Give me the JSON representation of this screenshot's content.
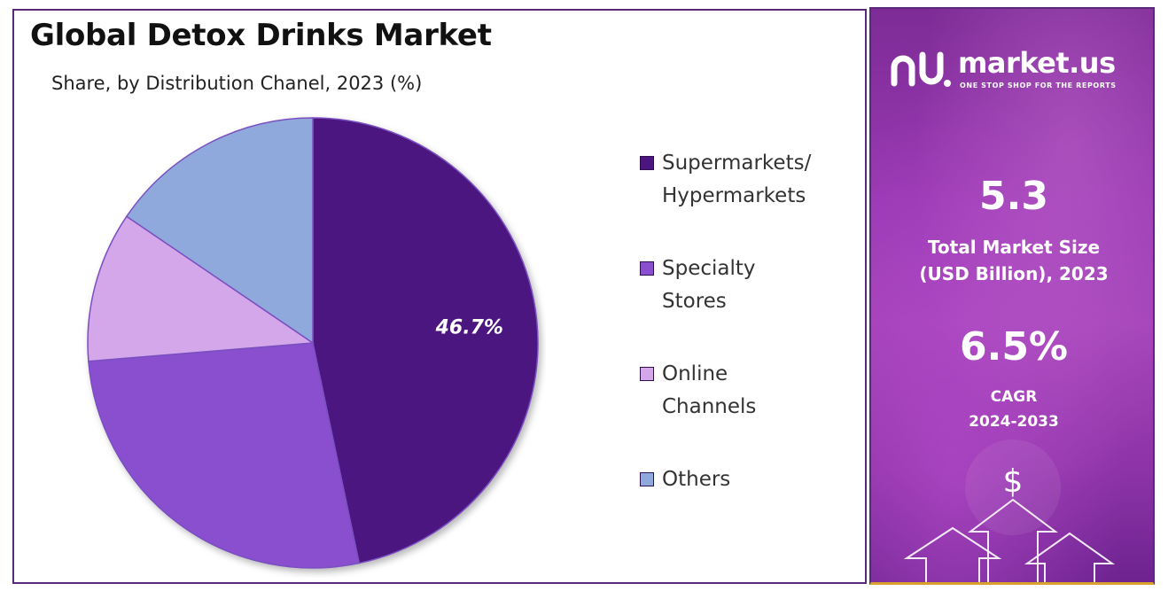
{
  "chart_data": {
    "type": "pie",
    "title": "Global Detox Drinks Market",
    "subtitle": "Share, by Distribution Chanel, 2023 (%)",
    "categories": [
      "Supermarkets/ Hypermarkets",
      "Specialty Stores",
      "Online Channels",
      "Others"
    ],
    "values": [
      46.7,
      27.0,
      10.8,
      15.5
    ],
    "data_labels": [
      "46.7%",
      "",
      "",
      ""
    ],
    "colors": [
      "#4c1580",
      "#8a4fcf",
      "#d4a6ea",
      "#8fa9dc"
    ],
    "start_angle": "12 o'clock",
    "direction": "clockwise",
    "legend_position": "right"
  },
  "legend": {
    "items": [
      {
        "line1": "Supermarkets/",
        "line2": "Hypermarkets",
        "color": "#4c1580"
      },
      {
        "line1": "Specialty",
        "line2": "Stores",
        "color": "#8a4fcf"
      },
      {
        "line1": "Online",
        "line2": "Channels",
        "color": "#d4a6ea"
      },
      {
        "line1": "Others",
        "line2": "",
        "color": "#8fa9dc"
      }
    ]
  },
  "sidebar": {
    "brand_name": "market.us",
    "brand_tagline": "ONE STOP SHOP FOR THE REPORTS",
    "market_size_value": "5.3",
    "market_size_label_1": "Total Market Size",
    "market_size_label_2": "(USD Billion), 2023",
    "cagr_value": "6.5%",
    "cagr_label_1": "CAGR",
    "cagr_label_2": "2024-2033",
    "decoration_icon": "dollar-growth-arrows-icon",
    "accent_color": "#d9a22e"
  }
}
